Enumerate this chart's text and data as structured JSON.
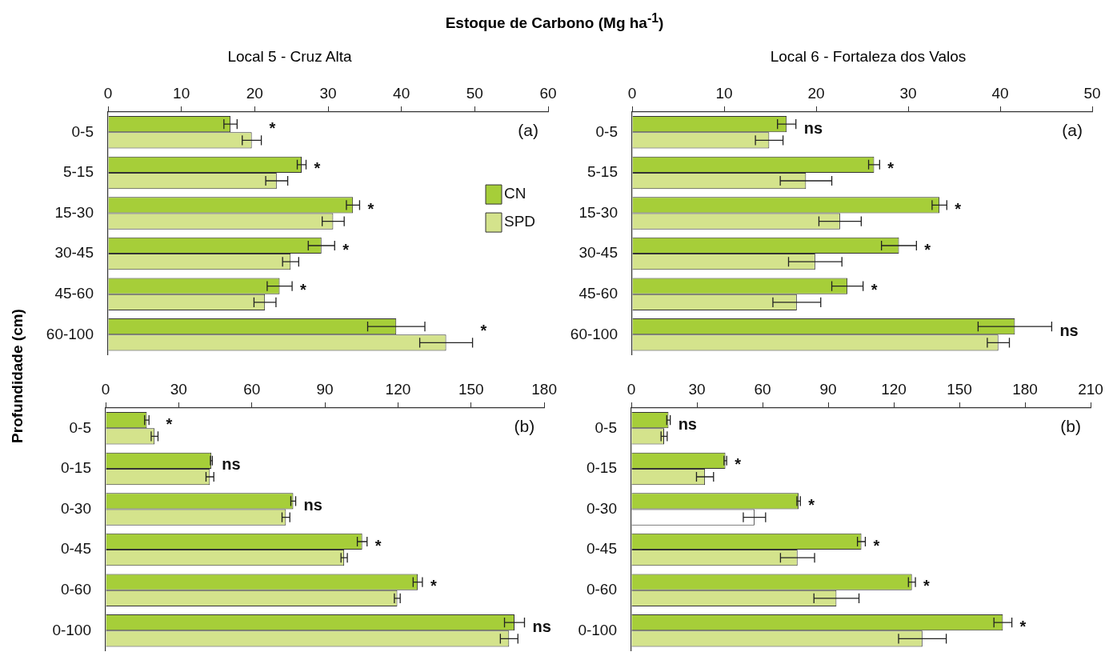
{
  "chart_data": [
    {
      "type": "bar",
      "orientation": "horizontal",
      "title": "Estoque de Carbono (Mg ha$^{-1}$)",
      "subtitle": "Local 5 - Cruz Alta",
      "ylabel": "Profundidade (cm)",
      "categories": [
        "0-5",
        "5-15",
        "15-30",
        "30-45",
        "45-60",
        "60-100"
      ],
      "series": [
        {
          "name": "CN",
          "color": "#a6ce39",
          "values": [
            16.7,
            26.4,
            33.4,
            29.1,
            23.4,
            39.3
          ],
          "errors": [
            0.9,
            0.6,
            0.9,
            1.8,
            1.7,
            3.9
          ]
        },
        {
          "name": "SPD",
          "color": "#d4e38c",
          "values": [
            19.6,
            23.0,
            30.7,
            24.9,
            21.4,
            46.1
          ],
          "errors": [
            1.3,
            1.5,
            1.5,
            1.1,
            1.5,
            3.6
          ]
        }
      ],
      "xlim": [
        0,
        60
      ],
      "xticks": [
        0,
        10,
        20,
        30,
        40,
        50,
        60
      ],
      "legend": "right",
      "annotations": [
        "(a)",
        "*",
        "*",
        "*",
        "*",
        "*",
        "*"
      ]
    },
    {
      "type": "bar",
      "orientation": "horizontal",
      "subtitle": "Local 6 - Fortaleza dos Valos",
      "categories": [
        "0-5",
        "5-15",
        "15-30",
        "30-45",
        "45-60",
        "60-100"
      ],
      "series": [
        {
          "color": "#a6ce39",
          "values": [
            16.8,
            26.3,
            33.4,
            29.0,
            23.4,
            41.6
          ],
          "errors": [
            1.0,
            0.6,
            0.8,
            1.9,
            1.7,
            4.0
          ]
        },
        {
          "color": "#d4e38c",
          "values": [
            14.9,
            18.9,
            22.6,
            19.9,
            17.9,
            39.8
          ],
          "errors": [
            1.5,
            2.8,
            2.3,
            2.9,
            2.6,
            1.2
          ]
        }
      ],
      "xlim": [
        0,
        50
      ],
      "xticks": [
        0,
        10,
        20,
        30,
        40,
        50
      ],
      "annotations": [
        "(a)",
        "ns",
        "*",
        "*",
        "*",
        "*",
        "ns"
      ]
    },
    {
      "type": "bar",
      "orientation": "horizontal",
      "categories": [
        "0-5",
        "0-15",
        "0-30",
        "0-45",
        "0-60",
        "0-100"
      ],
      "series": [
        {
          "color": "#a6ce39",
          "values": [
            16.9,
            43.4,
            77.0,
            105.3,
            128.1,
            167.8
          ],
          "errors": [
            0.9,
            0.4,
            1.0,
            2.0,
            1.9,
            4.1
          ]
        },
        {
          "color": "#d4e38c",
          "values": [
            20.1,
            42.8,
            74.0,
            97.9,
            119.7,
            165.6
          ],
          "errors": [
            1.4,
            1.6,
            1.6,
            1.3,
            1.2,
            3.6
          ]
        }
      ],
      "xlim": [
        0,
        180
      ],
      "xticks": [
        0,
        30,
        60,
        90,
        120,
        150,
        180
      ],
      "annotations": [
        "(b)",
        "*",
        "ns",
        "ns",
        "*",
        "*",
        "ns"
      ]
    },
    {
      "type": "bar",
      "orientation": "horizontal",
      "categories": [
        "0-5",
        "0-15",
        "0-30",
        "0-45",
        "0-60",
        "0-100"
      ],
      "series": [
        {
          "color": "#a6ce39",
          "values": [
            17.0,
            43.0,
            76.5,
            105.2,
            128.3,
            169.9
          ],
          "errors": [
            0.8,
            0.6,
            0.8,
            1.8,
            1.6,
            4.1
          ]
        },
        {
          "colors": [
            "#d4e38c",
            "#d4e38c",
            "#ffffff",
            "#d4e38c",
            "#d4e38c",
            "#d4e38c"
          ],
          "values": [
            15.0,
            33.7,
            56.3,
            76.0,
            93.8,
            133.1
          ],
          "errors": [
            1.4,
            3.9,
            5.1,
            7.8,
            10.3,
            10.9
          ]
        }
      ],
      "xlim": [
        0,
        210
      ],
      "xticks": [
        0,
        30,
        60,
        90,
        120,
        150,
        180,
        210
      ],
      "annotations": [
        "(b)",
        "ns",
        "*",
        "*",
        "*",
        "*",
        "*"
      ]
    }
  ]
}
